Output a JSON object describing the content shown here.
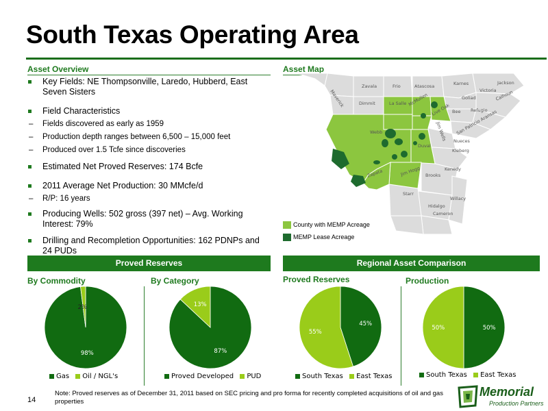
{
  "page": {
    "title": "South Texas Operating Area",
    "page_number": "14"
  },
  "overview": {
    "heading": "Asset Overview",
    "key_fields": "Key Fields: NE Thompsonville, Laredo, Hubberd, East Seven Sisters",
    "field_characteristics": "Field Characteristics",
    "fc_items": [
      "Fields discovered as early as 1959",
      "Production depth ranges between 6,500 – 15,000 feet",
      "Produced over 1.5 Tcfe since discoveries"
    ],
    "reserves": "Estimated Net Proved Reserves: 174 Bcfe",
    "production": "2011 Average Net Production: 30 MMcfe/d",
    "rp": "R/P: 16 years",
    "wells": "Producing Wells: 502 gross (397 net) – Avg. Working Interest: 79%",
    "drilling": "Drilling and Recompletion Opportunities: 162 PDNPs and  24 PUDs"
  },
  "map": {
    "heading": "Asset Map",
    "counties": [
      "Maverick",
      "Zavala",
      "Frio",
      "Atascosa",
      "Karnes",
      "Jackson",
      "Victoria",
      "Dimmit",
      "La Salle",
      "McMullen",
      "Live Oak",
      "Goliad",
      "Calhoun",
      "Bee",
      "Refugio",
      "Aransas",
      "Webb",
      "San Patricio",
      "Duval",
      "Jim Wells",
      "Nueces",
      "Kleberg",
      "Zapata",
      "Jim Hogg",
      "Brooks",
      "Kenedy",
      "Starr",
      "Hidalgo",
      "Willacy",
      "Cameron"
    ],
    "legend_county": "County with MEMP Acreage",
    "legend_lease": "MEMP Lease Acreage",
    "colors": {
      "county": "#8cc63f",
      "lease": "#1e6b2e",
      "base": "#dcdcdc"
    }
  },
  "sections": {
    "proved_reserves": "Proved Reserves",
    "regional": "Regional Asset Comparison"
  },
  "charts": {
    "by_commodity": {
      "title": "By Commodity",
      "legend": [
        "Gas",
        "Oil / NGL's"
      ]
    },
    "by_category": {
      "title": "By Category",
      "legend": [
        "Proved Developed",
        "PUD"
      ]
    },
    "regional_reserves": {
      "title": "Proved Reserves",
      "legend": [
        "South Texas",
        "East Texas"
      ]
    },
    "regional_production": {
      "title": "Production",
      "legend": [
        "South Texas",
        "East Texas"
      ]
    }
  },
  "chart_data": [
    {
      "type": "pie",
      "title": "By Commodity",
      "categories": [
        "Gas",
        "Oil / NGL's"
      ],
      "values": [
        98,
        2
      ],
      "labels": [
        "98%",
        "2%"
      ],
      "colors": [
        "#116b11",
        "#9acc1a"
      ]
    },
    {
      "type": "pie",
      "title": "By Category",
      "categories": [
        "Proved Developed",
        "PUD"
      ],
      "values": [
        87,
        13
      ],
      "labels": [
        "87%",
        "13%"
      ],
      "colors": [
        "#116b11",
        "#9acc1a"
      ]
    },
    {
      "type": "pie",
      "title": "Proved Reserves",
      "categories": [
        "South Texas",
        "East Texas"
      ],
      "values": [
        45,
        55
      ],
      "labels": [
        "45%",
        "55%"
      ],
      "colors": [
        "#116b11",
        "#9acc1a"
      ]
    },
    {
      "type": "pie",
      "title": "Production",
      "categories": [
        "South Texas",
        "East Texas"
      ],
      "values": [
        50,
        50
      ],
      "labels": [
        "50%",
        "50%"
      ],
      "colors": [
        "#116b11",
        "#9acc1a"
      ]
    }
  ],
  "footer": {
    "note": "Note: Proved reserves as of December 31, 2011 based on SEC pricing and pro forma for recently completed acquisitions of oil and gas properties",
    "logo_name": "Memorial",
    "logo_sub": "Production Partners"
  }
}
